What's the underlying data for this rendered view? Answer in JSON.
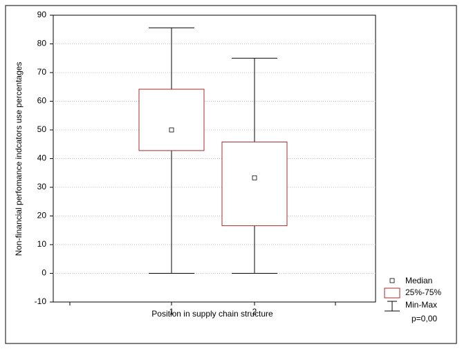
{
  "chart_data": {
    "type": "box",
    "x_label": "Position in supply chain structure",
    "y_label": "Non-financial perfomance indcators use percentages",
    "categories": [
      "1",
      "2"
    ],
    "boxes": [
      {
        "min": 0,
        "q1": 42.8,
        "median": 50,
        "q3": 64.2,
        "max": 85.6
      },
      {
        "min": 0,
        "q1": 16.6,
        "median": 33.3,
        "q3": 45.8,
        "max": 75
      }
    ],
    "box_color": "#a8292c",
    "ylim": [
      -10,
      90
    ],
    "yticks": [
      -10,
      0,
      10,
      20,
      30,
      40,
      50,
      60,
      70,
      80,
      90
    ],
    "grid": true,
    "legend": [
      "Median",
      "25%-75%",
      "Min-Max"
    ],
    "annotation": "p=0,00"
  }
}
